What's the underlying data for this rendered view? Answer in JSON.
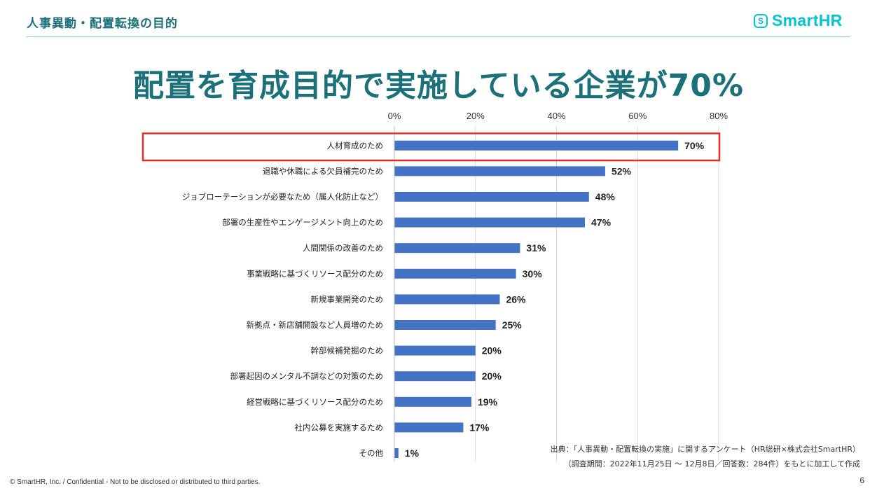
{
  "header": {
    "title": "人事異動・配置転換の目的",
    "logo_mark": "S",
    "logo_text": "SmartHR"
  },
  "headline": "配置を育成目的で実施している企業が70%",
  "chart_data": {
    "type": "bar",
    "orientation": "horizontal",
    "title": "",
    "xlabel": "",
    "ylabel": "",
    "xlim": [
      0,
      80
    ],
    "xticks": [
      "0%",
      "20%",
      "40%",
      "60%",
      "80%"
    ],
    "tick_values": [
      0,
      20,
      40,
      60,
      80
    ],
    "grid": true,
    "bar_color": "#4472c4",
    "highlight_color": "#e03131",
    "highlight_index": 0,
    "categories": [
      "人材育成のため",
      "退職や休職による欠員補完のため",
      "ジョブローテーションが必要なため（属人化防止など）",
      "部署の生産性やエンゲージメント向上のため",
      "人間関係の改善のため",
      "事業戦略に基づくリソース配分のため",
      "新規事業開発のため",
      "新拠点・新店舗開設など人員増のため",
      "幹部候補発掘のため",
      "部署起因のメンタル不調などの対策のため",
      "経営戦略に基づくリソース配分のため",
      "社内公募を実施するため",
      "その他"
    ],
    "values": [
      70,
      52,
      48,
      47,
      31,
      30,
      26,
      25,
      20,
      20,
      19,
      17,
      1
    ],
    "value_labels": [
      "70%",
      "52%",
      "48%",
      "47%",
      "31%",
      "30%",
      "26%",
      "25%",
      "20%",
      "20%",
      "19%",
      "17%",
      "1%"
    ]
  },
  "source": {
    "line1": "出典：「人事異動・配置転換の実施」に関するアンケート（HR総研×株式会社SmartHR）",
    "line2": "（調査期間：2022年11月25日 〜 12月8日／回答数：284件）をもとに加工して作成"
  },
  "footer": "© SmartHR, Inc. / Confidential - Not to be disclosed or distributed to third parties.",
  "page_number": "6"
}
